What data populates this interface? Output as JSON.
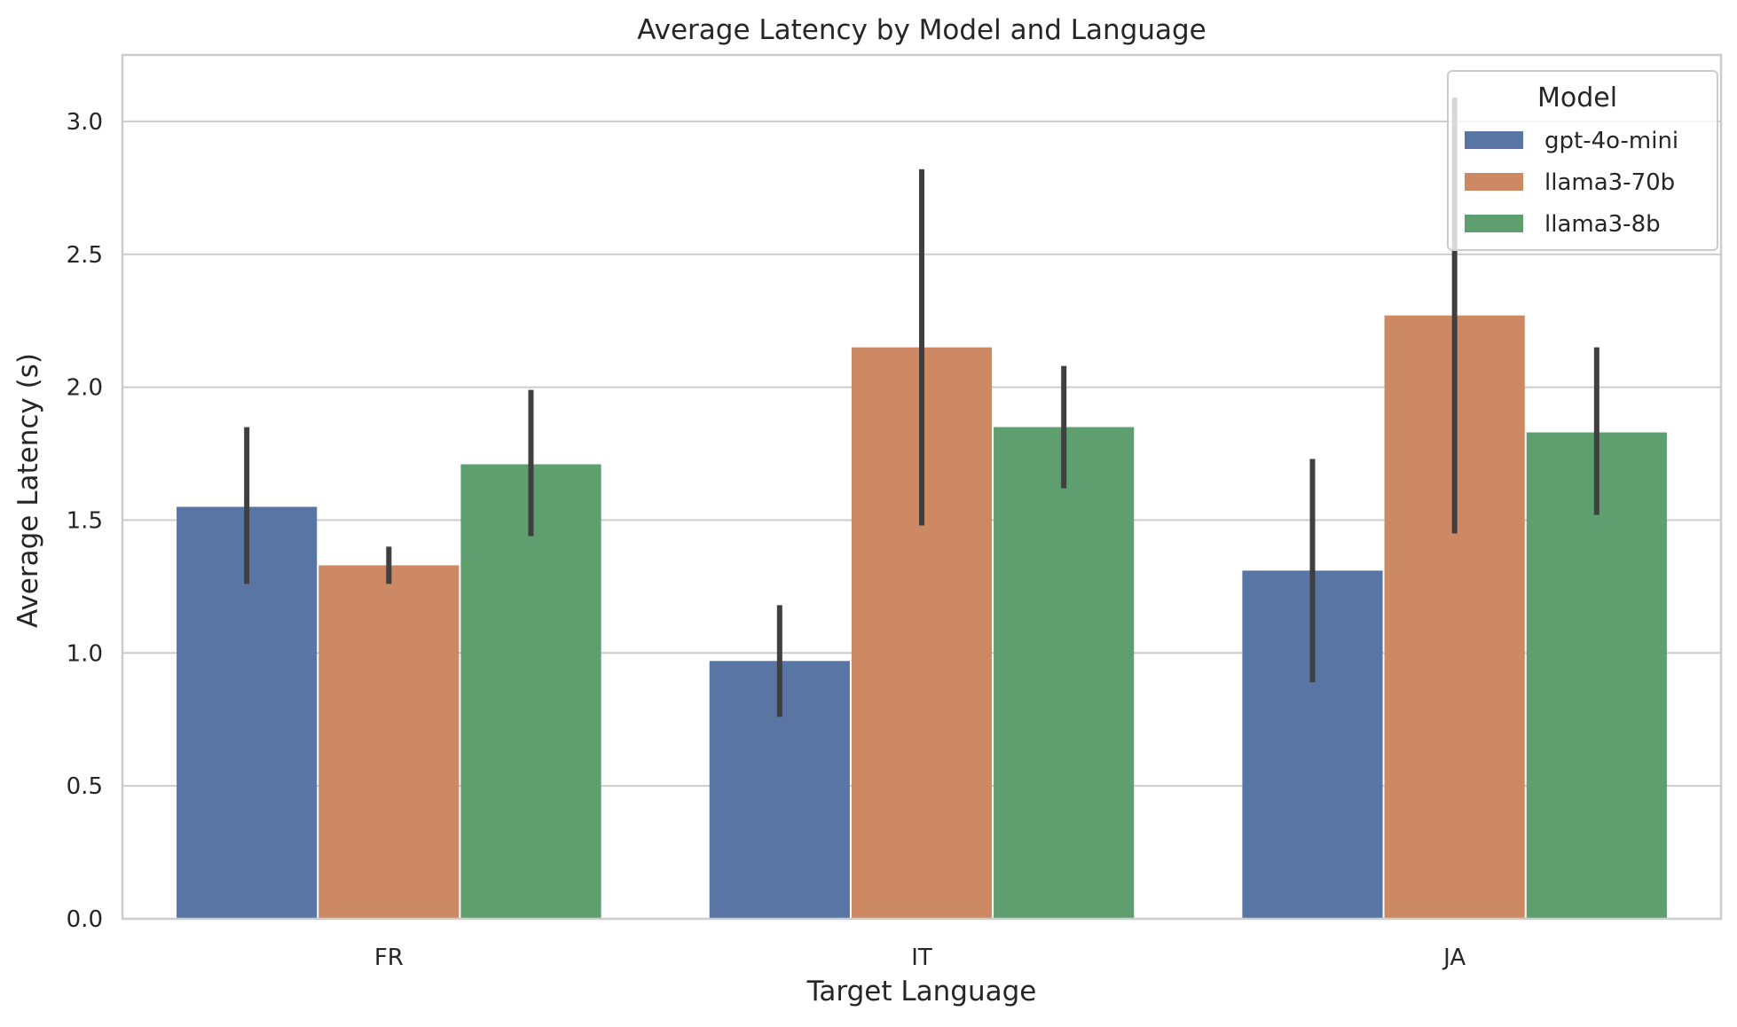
{
  "chart_data": {
    "type": "bar",
    "title": "Average Latency by Model and Language",
    "xlabel": "Target Language",
    "ylabel": "Average Latency (s)",
    "categories": [
      "FR",
      "IT",
      "JA"
    ],
    "ylim": [
      0,
      3.25
    ],
    "yticks": [
      "0.0",
      "0.5",
      "1.0",
      "1.5",
      "2.0",
      "2.5",
      "3.0"
    ],
    "grid": true,
    "legend": {
      "title": "Model",
      "placement": "top-right"
    },
    "series": [
      {
        "name": "gpt-4o-mini",
        "color": "#5875a4",
        "values": [
          1.55,
          0.97,
          1.31
        ],
        "error_low": [
          1.26,
          0.76,
          0.89
        ],
        "error_high": [
          1.85,
          1.18,
          1.73
        ]
      },
      {
        "name": "llama3-70b",
        "color": "#cc8963",
        "values": [
          1.33,
          2.15,
          2.27
        ],
        "error_low": [
          1.26,
          1.48,
          1.45
        ],
        "error_high": [
          1.4,
          2.82,
          3.09
        ]
      },
      {
        "name": "llama3-8b",
        "color": "#5f9e6e",
        "values": [
          1.71,
          1.85,
          1.83
        ],
        "error_low": [
          1.44,
          1.62,
          1.52
        ],
        "error_high": [
          1.99,
          2.08,
          2.15
        ]
      }
    ]
  }
}
